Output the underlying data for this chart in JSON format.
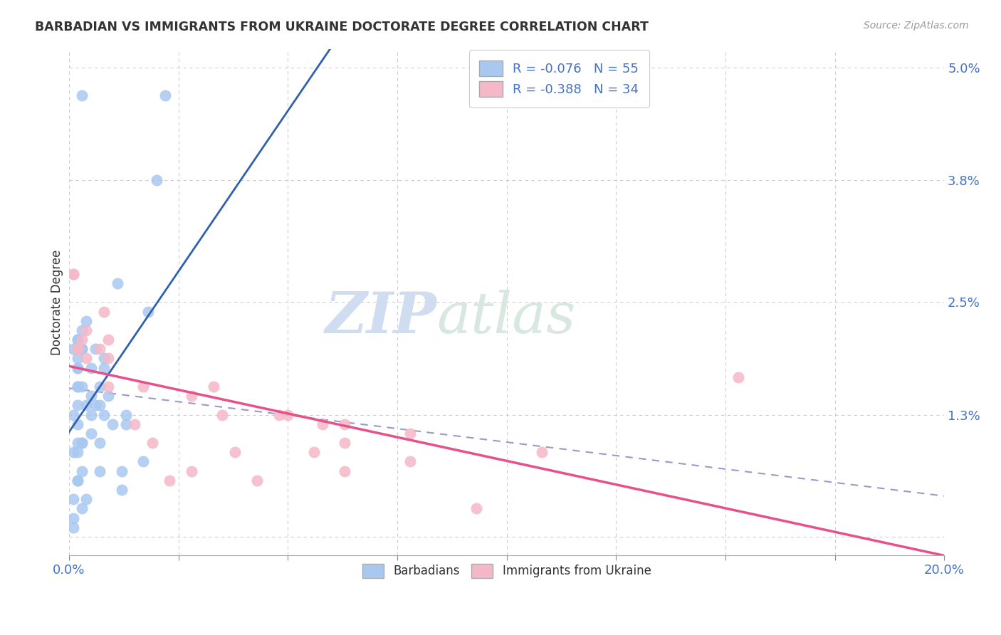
{
  "title": "BARBADIAN VS IMMIGRANTS FROM UKRAINE DOCTORATE DEGREE CORRELATION CHART",
  "source": "Source: ZipAtlas.com",
  "ylabel_label": "Doctorate Degree",
  "xlim": [
    0.0,
    0.2
  ],
  "ylim": [
    -0.002,
    0.052
  ],
  "blue_color": "#A8C8F0",
  "pink_color": "#F5B8C8",
  "blue_line_color": "#3060B0",
  "pink_line_color": "#E8508A",
  "dashed_line_color": "#9999CC",
  "watermark_zip": "ZIP",
  "watermark_atlas": "atlas",
  "background_color": "#FFFFFF",
  "grid_color": "#CCCCCC",
  "barbadian_x": [
    0.003,
    0.022,
    0.02,
    0.018,
    0.002,
    0.002,
    0.003,
    0.001,
    0.003,
    0.002,
    0.001,
    0.003,
    0.004,
    0.008,
    0.007,
    0.002,
    0.002,
    0.002,
    0.002,
    0.001,
    0.005,
    0.006,
    0.008,
    0.002,
    0.002,
    0.004,
    0.003,
    0.006,
    0.009,
    0.005,
    0.007,
    0.005,
    0.005,
    0.002,
    0.002,
    0.01,
    0.013,
    0.013,
    0.008,
    0.003,
    0.003,
    0.007,
    0.007,
    0.002,
    0.002,
    0.017,
    0.012,
    0.003,
    0.001,
    0.012,
    0.001,
    0.004,
    0.001,
    0.003,
    0.011
  ],
  "barbadian_y": [
    0.02,
    0.047,
    0.038,
    0.024,
    0.021,
    0.021,
    0.02,
    0.013,
    0.016,
    0.012,
    0.009,
    0.01,
    0.014,
    0.019,
    0.016,
    0.019,
    0.016,
    0.016,
    0.018,
    0.02,
    0.018,
    0.02,
    0.018,
    0.018,
    0.014,
    0.023,
    0.022,
    0.014,
    0.015,
    0.015,
    0.014,
    0.011,
    0.013,
    0.01,
    0.009,
    0.012,
    0.013,
    0.012,
    0.013,
    0.01,
    0.007,
    0.01,
    0.007,
    0.006,
    0.006,
    0.008,
    0.005,
    0.003,
    0.004,
    0.007,
    0.002,
    0.004,
    0.001,
    0.047,
    0.027
  ],
  "ukraine_x": [
    0.001,
    0.001,
    0.002,
    0.002,
    0.004,
    0.004,
    0.007,
    0.003,
    0.008,
    0.009,
    0.009,
    0.009,
    0.028,
    0.048,
    0.058,
    0.078,
    0.063,
    0.038,
    0.05,
    0.108,
    0.078,
    0.063,
    0.043,
    0.093,
    0.063,
    0.056,
    0.035,
    0.028,
    0.023,
    0.019,
    0.017,
    0.015,
    0.033,
    0.153
  ],
  "ukraine_y": [
    0.028,
    0.028,
    0.02,
    0.02,
    0.022,
    0.019,
    0.02,
    0.021,
    0.024,
    0.021,
    0.019,
    0.016,
    0.015,
    0.013,
    0.012,
    0.011,
    0.01,
    0.009,
    0.013,
    0.009,
    0.008,
    0.007,
    0.006,
    0.003,
    0.012,
    0.009,
    0.013,
    0.007,
    0.006,
    0.01,
    0.016,
    0.012,
    0.016,
    0.017
  ],
  "x_tick_positions": [
    0.0,
    0.025,
    0.05,
    0.075,
    0.1,
    0.125,
    0.15,
    0.175,
    0.2
  ],
  "x_tick_labels": [
    "0.0%",
    "",
    "",
    "",
    "",
    "",
    "",
    "",
    "20.0%"
  ],
  "y_tick_positions": [
    0.0,
    0.013,
    0.025,
    0.038,
    0.05
  ],
  "y_tick_labels": [
    "",
    "1.3%",
    "2.5%",
    "3.8%",
    "5.0%"
  ]
}
